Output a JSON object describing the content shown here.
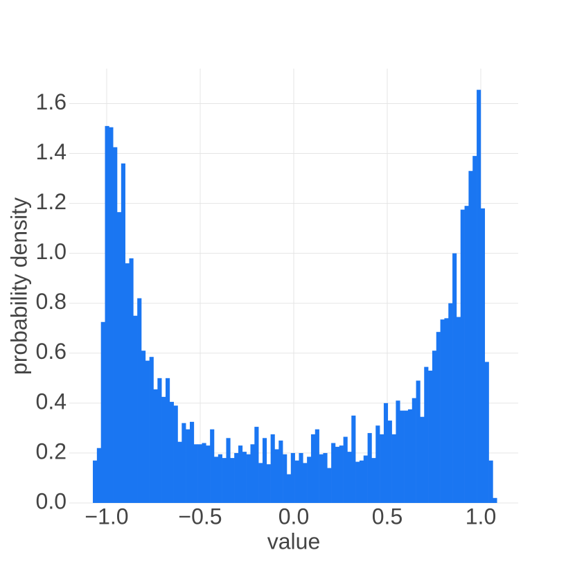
{
  "chart_data": {
    "type": "histogram",
    "x_label": "value",
    "y_label": "probability density",
    "color": "#1a76f2",
    "bins": [
      -1.074,
      -1.0524,
      -1.0308,
      -1.0092,
      -0.9876,
      -0.966,
      -0.9444,
      -0.9228,
      -0.9012,
      -0.8796,
      -0.858,
      -0.8364,
      -0.8148,
      -0.7932,
      -0.7716,
      -0.75,
      -0.7284,
      -0.7068,
      -0.6852,
      -0.6636,
      -0.642,
      -0.6204,
      -0.5988,
      -0.5772,
      -0.5556,
      -0.534,
      -0.5124,
      -0.4908,
      -0.4692,
      -0.4476,
      -0.426,
      -0.4044,
      -0.3828,
      -0.3612,
      -0.3396,
      -0.318,
      -0.2964,
      -0.2748,
      -0.2532,
      -0.2316,
      -0.21,
      -0.1884,
      -0.1668,
      -0.1452,
      -0.1236,
      -0.102,
      -0.0804,
      -0.0588,
      -0.0372,
      -0.0156,
      0.006,
      0.0276,
      0.0492,
      0.0708,
      0.0924,
      0.114,
      0.1356,
      0.1572,
      0.1788,
      0.2004,
      0.222,
      0.2436,
      0.2652,
      0.2868,
      0.3084,
      0.33,
      0.3516,
      0.3732,
      0.3948,
      0.4164,
      0.438,
      0.4596,
      0.4812,
      0.5028,
      0.5244,
      0.546,
      0.5676,
      0.5892,
      0.6108,
      0.6324,
      0.654,
      0.6756,
      0.6972,
      0.7188,
      0.7404,
      0.762,
      0.7836,
      0.8052,
      0.8268,
      0.8484,
      0.87,
      0.8916,
      0.9132,
      0.9348,
      0.9564,
      0.978,
      0.9996,
      1.0212,
      1.0428,
      1.0644,
      1.086
    ],
    "values": [
      0.17,
      0.22,
      0.725,
      1.51,
      1.505,
      1.425,
      1.165,
      1.36,
      0.96,
      0.98,
      0.75,
      0.82,
      0.61,
      0.57,
      0.585,
      0.455,
      0.5,
      0.425,
      0.5,
      0.405,
      0.39,
      0.245,
      0.32,
      0.295,
      0.325,
      0.235,
      0.235,
      0.24,
      0.23,
      0.295,
      0.185,
      0.195,
      0.18,
      0.26,
      0.18,
      0.2,
      0.23,
      0.205,
      0.195,
      0.235,
      0.305,
      0.16,
      0.26,
      0.155,
      0.275,
      0.215,
      0.25,
      0.195,
      0.115,
      0.2,
      0.17,
      0.2,
      0.16,
      0.185,
      0.275,
      0.295,
      0.195,
      0.2,
      0.14,
      0.24,
      0.225,
      0.23,
      0.265,
      0.205,
      0.35,
      0.165,
      0.17,
      0.19,
      0.28,
      0.18,
      0.31,
      0.275,
      0.4,
      0.33,
      0.275,
      0.41,
      0.37,
      0.37,
      0.375,
      0.42,
      0.49,
      0.345,
      0.545,
      0.53,
      0.61,
      0.685,
      0.735,
      0.74,
      0.8,
      1.0,
      0.745,
      1.175,
      1.19,
      1.33,
      1.39,
      1.655,
      1.18,
      0.565,
      0.17,
      0.02
    ],
    "xlim": [
      -1.2,
      1.2
    ],
    "xticks": [
      {
        "value": -1.0,
        "label": "−1.0"
      },
      {
        "value": -0.5,
        "label": "−0.5"
      },
      {
        "value": 0,
        "label": "0.0"
      },
      0.5,
      {
        "value": 1.0,
        "label": "1.0"
      }
    ],
    "ylim": [
      0,
      1.74
    ],
    "yticks": [
      {
        "value": 0,
        "label": "0.0"
      },
      0.2,
      0.4,
      0.6,
      0.8,
      {
        "value": 1.0,
        "label": "1.0"
      },
      1.2,
      1.4,
      1.6
    ],
    "grid": true
  }
}
